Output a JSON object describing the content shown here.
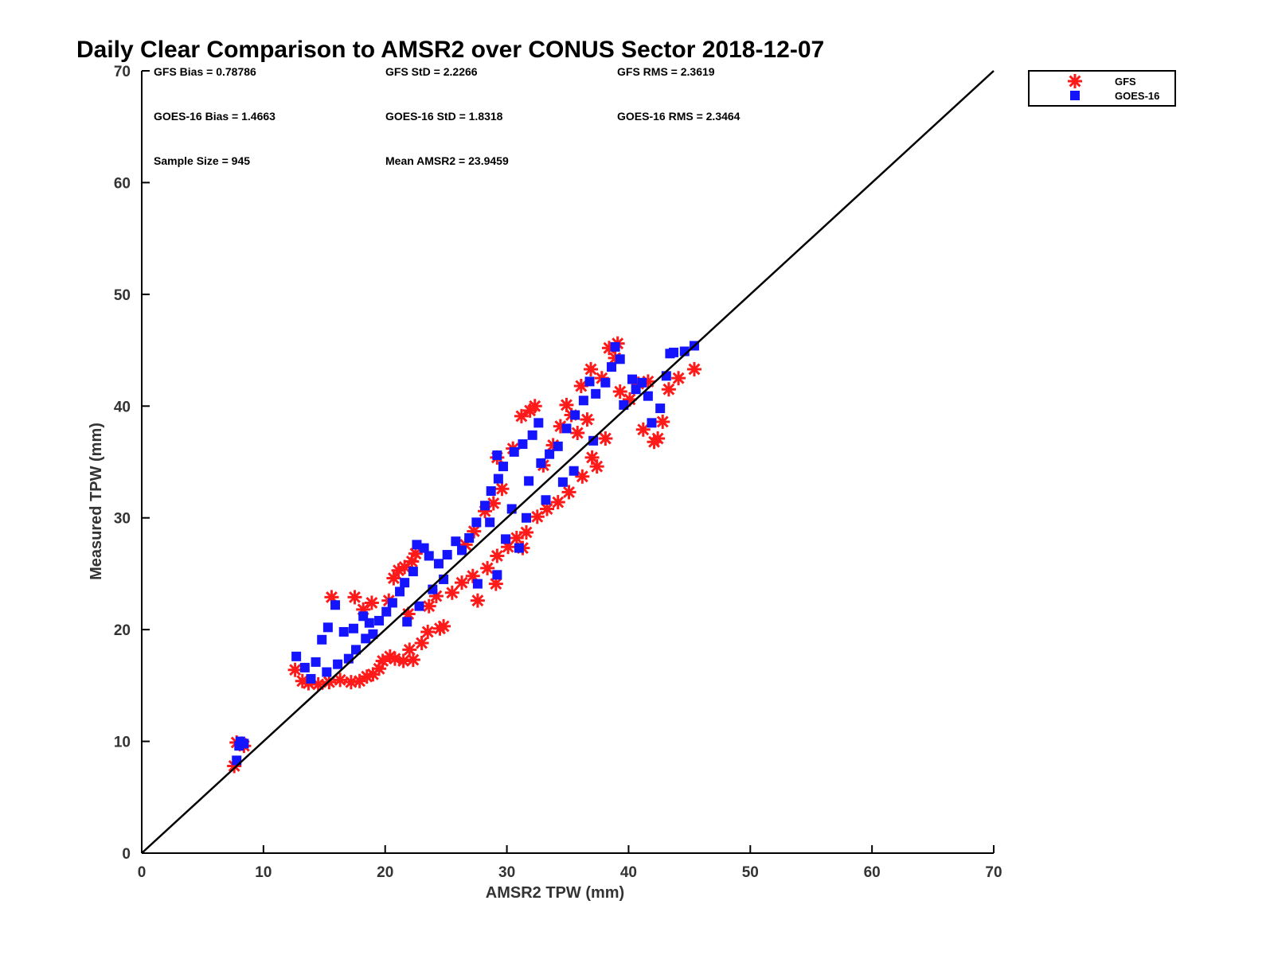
{
  "chart_data": {
    "type": "scatter",
    "title": "Daily Clear Comparison to AMSR2 over CONUS Sector 2018-12-07",
    "xlabel": "AMSR2 TPW (mm)",
    "ylabel": "Measured TPW (mm)",
    "xlim": [
      0,
      70
    ],
    "ylim": [
      0,
      70
    ],
    "xticks": [
      "0",
      "10",
      "20",
      "30",
      "40",
      "50",
      "60",
      "70"
    ],
    "yticks": [
      "0",
      "10",
      "20",
      "30",
      "40",
      "50",
      "60",
      "70"
    ],
    "grid": false,
    "legend_position": "right, outside plot",
    "reference_line": "one-to-one diagonal",
    "stats": {
      "gfs_bias": "GFS Bias = 0.78786",
      "gfs_std": "GFS StD = 2.2266",
      "gfs_rms": "GFS RMS = 2.3619",
      "goes_bias": "GOES-16 Bias = 1.4663",
      "goes_std": "GOES-16 StD = 1.8318",
      "goes_rms": "GOES-16 RMS = 2.3464",
      "sample_size": "Sample Size = 945",
      "mean_amsr2": "Mean AMSR2 = 23.9459"
    },
    "series": [
      {
        "name": "GFS",
        "marker": "asterisk",
        "color": "#ff1a1a",
        "points": [
          [
            7.6,
            7.8
          ],
          [
            7.8,
            9.9
          ],
          [
            8.2,
            9.8
          ],
          [
            8.4,
            9.6
          ],
          [
            12.6,
            16.4
          ],
          [
            13.2,
            15.4
          ],
          [
            13.7,
            15.2
          ],
          [
            14.5,
            15.1
          ],
          [
            15.6,
            22.9
          ],
          [
            15.4,
            15.3
          ],
          [
            16.3,
            15.5
          ],
          [
            17.2,
            15.3
          ],
          [
            17.5,
            22.9
          ],
          [
            17.9,
            15.4
          ],
          [
            18.2,
            21.8
          ],
          [
            18.5,
            15.8
          ],
          [
            19.0,
            16.0
          ],
          [
            19.5,
            16.5
          ],
          [
            18.9,
            22.4
          ],
          [
            19.8,
            17.2
          ],
          [
            20.4,
            17.6
          ],
          [
            20.8,
            17.4
          ],
          [
            21.5,
            17.2
          ],
          [
            22.3,
            17.3
          ],
          [
            22.0,
            18.2
          ],
          [
            23.0,
            18.8
          ],
          [
            23.5,
            19.8
          ],
          [
            24.5,
            20.1
          ],
          [
            24.8,
            20.3
          ],
          [
            20.3,
            22.6
          ],
          [
            20.7,
            24.6
          ],
          [
            21.1,
            25.3
          ],
          [
            21.6,
            25.6
          ],
          [
            22.2,
            26.1
          ],
          [
            22.5,
            26.8
          ],
          [
            21.9,
            21.4
          ],
          [
            23.6,
            22.1
          ],
          [
            24.2,
            23.0
          ],
          [
            25.5,
            23.3
          ],
          [
            26.3,
            24.2
          ],
          [
            27.2,
            24.8
          ],
          [
            27.6,
            22.6
          ],
          [
            29.1,
            24.1
          ],
          [
            28.4,
            25.5
          ],
          [
            29.2,
            26.6
          ],
          [
            30.1,
            27.4
          ],
          [
            31.3,
            27.3
          ],
          [
            30.8,
            28.2
          ],
          [
            31.6,
            28.7
          ],
          [
            32.5,
            30.1
          ],
          [
            33.3,
            30.8
          ],
          [
            34.2,
            31.4
          ],
          [
            35.1,
            32.3
          ],
          [
            26.6,
            27.6
          ],
          [
            27.3,
            28.8
          ],
          [
            28.2,
            30.6
          ],
          [
            28.9,
            31.3
          ],
          [
            29.6,
            32.6
          ],
          [
            29.2,
            35.4
          ],
          [
            30.5,
            36.2
          ],
          [
            31.2,
            39.1
          ],
          [
            31.9,
            39.6
          ],
          [
            32.3,
            40.0
          ],
          [
            33.0,
            34.7
          ],
          [
            33.8,
            36.5
          ],
          [
            34.4,
            38.2
          ],
          [
            35.3,
            39.2
          ],
          [
            36.1,
            41.8
          ],
          [
            36.9,
            43.3
          ],
          [
            37.4,
            34.6
          ],
          [
            37.0,
            35.4
          ],
          [
            36.2,
            33.7
          ],
          [
            38.1,
            37.1
          ],
          [
            38.4,
            45.2
          ],
          [
            39.1,
            45.6
          ],
          [
            38.9,
            44.3
          ],
          [
            39.3,
            41.3
          ],
          [
            40.1,
            40.6
          ],
          [
            40.8,
            42.0
          ],
          [
            41.6,
            42.2
          ],
          [
            41.2,
            37.9
          ],
          [
            42.4,
            37.1
          ],
          [
            42.1,
            36.8
          ],
          [
            42.8,
            38.6
          ],
          [
            43.3,
            41.5
          ],
          [
            44.1,
            42.5
          ],
          [
            45.4,
            43.3
          ],
          [
            36.6,
            38.8
          ],
          [
            35.8,
            37.6
          ],
          [
            37.8,
            42.5
          ],
          [
            34.9,
            40.1
          ]
        ]
      },
      {
        "name": "GOES-16",
        "marker": "square",
        "color": "#1414ff",
        "points": [
          [
            7.8,
            8.3
          ],
          [
            8.0,
            9.6
          ],
          [
            8.4,
            9.8
          ],
          [
            8.1,
            10.0
          ],
          [
            12.7,
            17.6
          ],
          [
            13.4,
            16.6
          ],
          [
            14.3,
            17.1
          ],
          [
            14.8,
            19.1
          ],
          [
            15.3,
            20.2
          ],
          [
            15.9,
            22.2
          ],
          [
            16.6,
            19.8
          ],
          [
            17.4,
            20.1
          ],
          [
            18.2,
            21.2
          ],
          [
            18.7,
            20.6
          ],
          [
            13.9,
            15.6
          ],
          [
            15.2,
            16.2
          ],
          [
            16.1,
            16.9
          ],
          [
            17.0,
            17.4
          ],
          [
            17.6,
            18.2
          ],
          [
            18.4,
            19.2
          ],
          [
            19.0,
            19.6
          ],
          [
            19.5,
            20.8
          ],
          [
            20.1,
            21.6
          ],
          [
            20.6,
            22.4
          ],
          [
            21.2,
            23.4
          ],
          [
            21.6,
            24.2
          ],
          [
            22.3,
            25.2
          ],
          [
            22.6,
            27.6
          ],
          [
            23.2,
            27.3
          ],
          [
            23.6,
            26.6
          ],
          [
            24.4,
            25.9
          ],
          [
            25.1,
            26.7
          ],
          [
            25.8,
            27.9
          ],
          [
            26.3,
            27.1
          ],
          [
            21.8,
            20.7
          ],
          [
            22.8,
            22.1
          ],
          [
            23.9,
            23.6
          ],
          [
            24.8,
            24.5
          ],
          [
            26.9,
            28.2
          ],
          [
            27.5,
            29.6
          ],
          [
            28.2,
            31.1
          ],
          [
            28.7,
            32.4
          ],
          [
            29.3,
            33.5
          ],
          [
            29.7,
            34.6
          ],
          [
            29.2,
            35.6
          ],
          [
            30.6,
            35.9
          ],
          [
            31.3,
            36.6
          ],
          [
            32.1,
            37.4
          ],
          [
            32.6,
            38.5
          ],
          [
            31.8,
            33.3
          ],
          [
            32.8,
            34.9
          ],
          [
            33.5,
            35.7
          ],
          [
            34.2,
            36.4
          ],
          [
            34.9,
            38.0
          ],
          [
            35.6,
            39.2
          ],
          [
            36.3,
            40.5
          ],
          [
            36.8,
            42.2
          ],
          [
            37.3,
            41.1
          ],
          [
            38.1,
            42.1
          ],
          [
            38.6,
            43.5
          ],
          [
            38.9,
            45.3
          ],
          [
            39.3,
            44.2
          ],
          [
            40.3,
            42.4
          ],
          [
            41.1,
            42.1
          ],
          [
            41.6,
            40.9
          ],
          [
            41.9,
            38.5
          ],
          [
            42.6,
            39.8
          ],
          [
            43.1,
            42.7
          ],
          [
            43.4,
            44.7
          ],
          [
            43.7,
            44.8
          ],
          [
            44.6,
            44.9
          ],
          [
            45.4,
            45.4
          ],
          [
            31.0,
            27.3
          ],
          [
            29.9,
            28.1
          ],
          [
            28.6,
            29.6
          ],
          [
            30.4,
            30.8
          ],
          [
            27.6,
            24.1
          ],
          [
            29.2,
            24.9
          ],
          [
            31.6,
            30.0
          ],
          [
            33.2,
            31.6
          ],
          [
            34.6,
            33.2
          ],
          [
            35.5,
            34.2
          ],
          [
            37.1,
            36.9
          ],
          [
            39.6,
            40.1
          ],
          [
            40.6,
            41.5
          ]
        ]
      }
    ]
  }
}
